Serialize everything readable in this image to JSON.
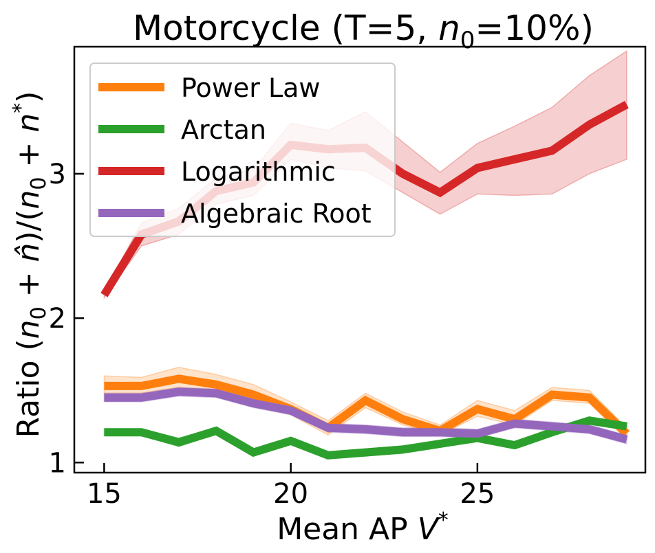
{
  "chart_data": {
    "type": "line",
    "title": "Motorcycle (T=5, n0=10%)",
    "title_parts": {
      "prefix": "Motorcycle (T=5, ",
      "var": "n",
      "sub": "0",
      "suffix": "=10%)"
    },
    "xlabel": "Mean AP V*",
    "xlabel_parts": {
      "text": "Mean AP ",
      "var": "V",
      "sup": "*"
    },
    "ylabel": "Ratio (n0 + n̂)/(n0 + n*)",
    "ylabel_parts": {
      "p1": "Ratio (",
      "n1": "n",
      "s1": "0",
      "p2": " + ",
      "nh": "n̂",
      "p3": ")/(",
      "n2": "n",
      "s2": "0",
      "p4": " + ",
      "n3": "n",
      "sup": "*",
      "p5": ")"
    },
    "xlim": [
      14.2,
      29.5
    ],
    "ylim": [
      0.93,
      3.88
    ],
    "xticks": [
      15,
      20,
      25
    ],
    "yticks": [
      1,
      2,
      3
    ],
    "x": [
      15,
      16,
      17,
      18,
      19,
      20,
      21,
      22,
      23,
      24,
      25,
      26,
      27,
      28,
      29
    ],
    "legend_position": "upper-left",
    "series": [
      {
        "name": "Power Law",
        "color": "#ff7f0e",
        "values": [
          1.53,
          1.53,
          1.58,
          1.54,
          1.47,
          1.37,
          1.24,
          1.43,
          1.3,
          1.22,
          1.37,
          1.3,
          1.47,
          1.45,
          1.2
        ],
        "upper": [
          1.6,
          1.59,
          1.66,
          1.61,
          1.54,
          1.42,
          1.29,
          1.48,
          1.35,
          1.26,
          1.43,
          1.36,
          1.52,
          1.5,
          1.24
        ],
        "lower": [
          1.48,
          1.48,
          1.52,
          1.49,
          1.42,
          1.33,
          1.19,
          1.38,
          1.26,
          1.19,
          1.32,
          1.26,
          1.43,
          1.41,
          1.16
        ]
      },
      {
        "name": "Arctan",
        "color": "#2ca02c",
        "values": [
          1.21,
          1.21,
          1.14,
          1.22,
          1.07,
          1.15,
          1.05,
          1.07,
          1.09,
          1.13,
          1.17,
          1.12,
          1.21,
          1.29,
          1.25
        ],
        "upper": [
          1.23,
          1.23,
          1.17,
          1.24,
          1.09,
          1.17,
          1.07,
          1.09,
          1.11,
          1.15,
          1.19,
          1.14,
          1.23,
          1.31,
          1.27
        ],
        "lower": [
          1.19,
          1.19,
          1.11,
          1.2,
          1.05,
          1.13,
          1.03,
          1.05,
          1.07,
          1.11,
          1.15,
          1.1,
          1.19,
          1.27,
          1.23
        ]
      },
      {
        "name": "Logarithmic",
        "color": "#d62728",
        "values": [
          2.16,
          2.58,
          2.67,
          2.88,
          2.94,
          3.2,
          3.17,
          3.18,
          3.0,
          2.87,
          3.04,
          3.1,
          3.16,
          3.34,
          3.48
        ],
        "upper": [
          2.18,
          2.66,
          2.76,
          2.97,
          3.03,
          3.35,
          3.3,
          3.43,
          3.22,
          3.01,
          3.21,
          3.33,
          3.46,
          3.68,
          3.85
        ],
        "lower": [
          2.14,
          2.5,
          2.58,
          2.79,
          2.85,
          3.1,
          3.04,
          3.02,
          2.87,
          2.72,
          2.86,
          2.85,
          2.86,
          3.0,
          3.1
        ]
      },
      {
        "name": "Algebraic Root",
        "color": "#9467bd",
        "values": [
          1.45,
          1.45,
          1.49,
          1.48,
          1.41,
          1.36,
          1.24,
          1.23,
          1.21,
          1.21,
          1.2,
          1.27,
          1.25,
          1.23,
          1.16
        ],
        "upper": [
          1.48,
          1.48,
          1.52,
          1.51,
          1.44,
          1.39,
          1.27,
          1.26,
          1.24,
          1.24,
          1.23,
          1.3,
          1.28,
          1.26,
          1.19
        ],
        "lower": [
          1.42,
          1.42,
          1.46,
          1.45,
          1.38,
          1.33,
          1.21,
          1.2,
          1.18,
          1.18,
          1.17,
          1.24,
          1.22,
          1.2,
          1.13
        ]
      }
    ]
  }
}
